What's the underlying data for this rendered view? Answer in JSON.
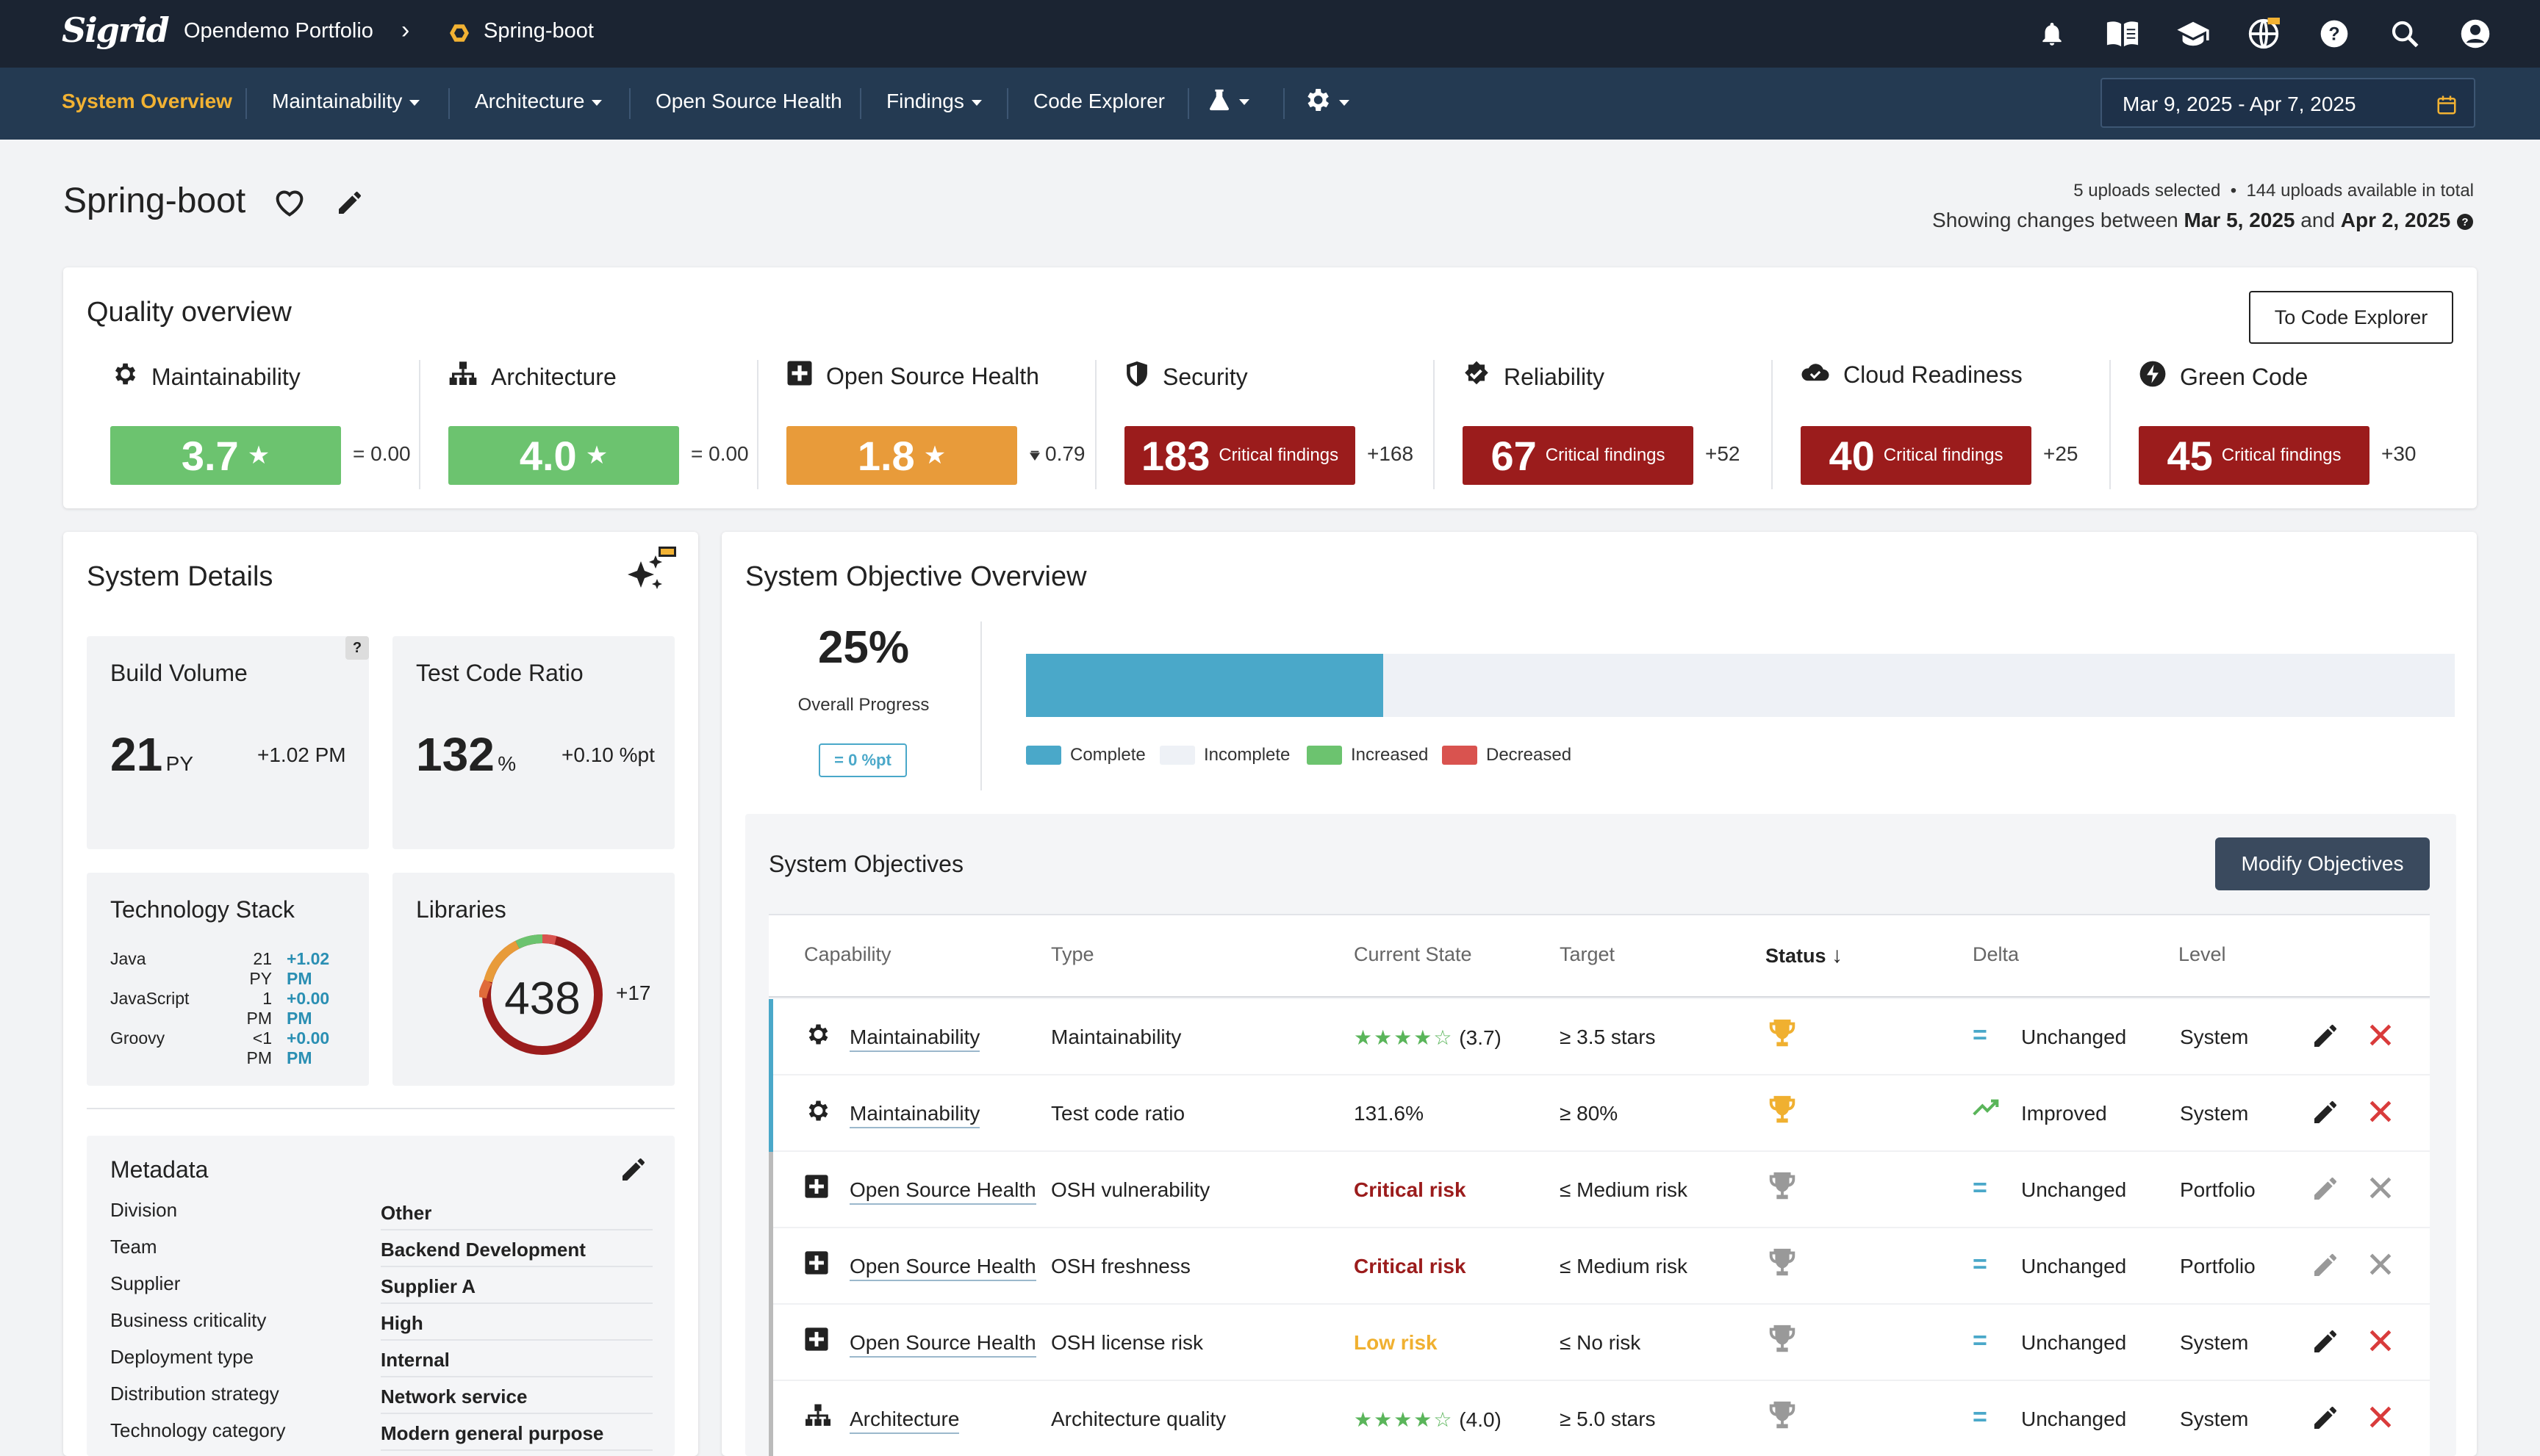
{
  "topbar": {
    "logo": "Sigrid",
    "portfolio": "Opendemo Portfolio",
    "system": "Spring-boot"
  },
  "nav": {
    "items": [
      "System Overview",
      "Maintainability",
      "Architecture",
      "Open Source Health",
      "Findings",
      "Code Explorer"
    ],
    "date_range": "Mar 9, 2025 - Apr 7, 2025"
  },
  "page": {
    "title": "Spring-boot",
    "uploads_selected": "5 uploads selected",
    "uploads_available": "144 uploads available in total",
    "showing_prefix": "Showing changes between",
    "date_from": "Mar 5, 2025",
    "and": "and",
    "date_to": "Apr 2, 2025"
  },
  "quality": {
    "title": "Quality overview",
    "button": "To Code Explorer",
    "items": [
      {
        "label": "Maintainability",
        "value": "3.7",
        "suffix": "★",
        "delta": "= 0.00",
        "color": "#6cc36f"
      },
      {
        "label": "Architecture",
        "value": "4.0",
        "suffix": "★",
        "delta": "= 0.00",
        "color": "#6cc36f"
      },
      {
        "label": "Open Source Health",
        "value": "1.8",
        "suffix": "★",
        "delta": "0.79",
        "color": "#e89b3a"
      },
      {
        "label": "Security",
        "value": "183",
        "suffix": "Critical findings",
        "delta": "+168",
        "color": "#9b1c1c"
      },
      {
        "label": "Reliability",
        "value": "67",
        "suffix": "Critical findings",
        "delta": "+52",
        "color": "#9b1c1c"
      },
      {
        "label": "Cloud Readiness",
        "value": "40",
        "suffix": "Critical findings",
        "delta": "+25",
        "color": "#9b1c1c"
      },
      {
        "label": "Green Code",
        "value": "45",
        "suffix": "Critical findings",
        "delta": "+30",
        "color": "#9b1c1c"
      }
    ]
  },
  "details": {
    "title": "System Details",
    "build_volume": {
      "label": "Build Volume",
      "value": "21",
      "unit": "PY",
      "delta": "+1.02 PM",
      "help": "?"
    },
    "test_code": {
      "label": "Test Code Ratio",
      "value": "132",
      "unit": "%",
      "delta": "+0.10 %pt"
    },
    "tech": {
      "label": "Technology Stack",
      "rows": [
        {
          "name": "Java",
          "size": "21 PY",
          "delta": "+1.02 PM"
        },
        {
          "name": "JavaScript",
          "size": "1 PM",
          "delta": "+0.00 PM"
        },
        {
          "name": "Groovy",
          "size": "<1 PM",
          "delta": "+0.00 PM"
        }
      ]
    },
    "libraries": {
      "label": "Libraries",
      "value": "438",
      "delta": "+17"
    },
    "metadata": {
      "title": "Metadata",
      "rows": [
        {
          "k": "Division",
          "v": "Other"
        },
        {
          "k": "Team",
          "v": "Backend Development"
        },
        {
          "k": "Supplier",
          "v": "Supplier A"
        },
        {
          "k": "Business criticality",
          "v": "High"
        },
        {
          "k": "Deployment type",
          "v": "Internal"
        },
        {
          "k": "Distribution strategy",
          "v": "Network service"
        },
        {
          "k": "Technology category",
          "v": "Modern general purpose"
        }
      ]
    }
  },
  "objective_overview": {
    "title": "System Objective Overview",
    "progress": "25%",
    "progress_label": "Overall Progress",
    "progress_fraction": 0.25,
    "delta_pill": "= 0 %pt",
    "legend": [
      {
        "label": "Complete",
        "color": "#4aa8c9"
      },
      {
        "label": "Incomplete",
        "color": "#eef1f6"
      },
      {
        "label": "Increased",
        "color": "#6cc36f"
      },
      {
        "label": "Decreased",
        "color": "#d9534f"
      }
    ]
  },
  "objectives": {
    "title": "System Objectives",
    "button": "Modify Objectives",
    "headers": [
      "Capability",
      "Type",
      "Current State",
      "Target",
      "Status",
      "Delta",
      "Level"
    ],
    "rows": [
      {
        "capability": "Maintainability",
        "icon": "maintainability-icon",
        "type": "Maintainability",
        "state": "(3.7)",
        "state_kind": "stars",
        "stars": "★★★★☆",
        "target": "≥ 3.5 stars",
        "status": "achieved",
        "delta": "Unchanged",
        "delta_kind": "unchanged",
        "level": "System",
        "editable": true,
        "accent": "#4aa8c9"
      },
      {
        "capability": "Maintainability",
        "icon": "maintainability-icon",
        "type": "Test code ratio",
        "state": "131.6%",
        "state_kind": "plain",
        "stars": "",
        "target": "≥ 80%",
        "status": "achieved",
        "delta": "Improved",
        "delta_kind": "improved",
        "level": "System",
        "editable": true,
        "accent": "#4aa8c9"
      },
      {
        "capability": "Open Source Health",
        "icon": "open-source-health-icon",
        "type": "OSH vulnerability",
        "state": "Critical risk",
        "state_kind": "critical",
        "stars": "",
        "target": "≤ Medium risk",
        "status": "not-achieved",
        "delta": "Unchanged",
        "delta_kind": "unchanged",
        "level": "Portfolio",
        "editable": false,
        "accent": "#bbbbbb"
      },
      {
        "capability": "Open Source Health",
        "icon": "open-source-health-icon",
        "type": "OSH freshness",
        "state": "Critical risk",
        "state_kind": "critical",
        "stars": "",
        "target": "≤ Medium risk",
        "status": "not-achieved",
        "delta": "Unchanged",
        "delta_kind": "unchanged",
        "level": "Portfolio",
        "editable": false,
        "accent": "#bbbbbb"
      },
      {
        "capability": "Open Source Health",
        "icon": "open-source-health-icon",
        "type": "OSH license risk",
        "state": "Low risk",
        "state_kind": "low",
        "stars": "",
        "target": "≤ No risk",
        "status": "not-achieved",
        "delta": "Unchanged",
        "delta_kind": "unchanged",
        "level": "System",
        "editable": true,
        "accent": "#bbbbbb"
      },
      {
        "capability": "Architecture",
        "icon": "architecture-icon",
        "type": "Architecture quality",
        "state": "(4.0)",
        "state_kind": "stars",
        "stars": "★★★★☆",
        "target": "≥ 5.0 stars",
        "status": "not-achieved",
        "delta": "Unchanged",
        "delta_kind": "unchanged",
        "level": "System",
        "editable": true,
        "accent": "#bbbbbb"
      }
    ]
  }
}
